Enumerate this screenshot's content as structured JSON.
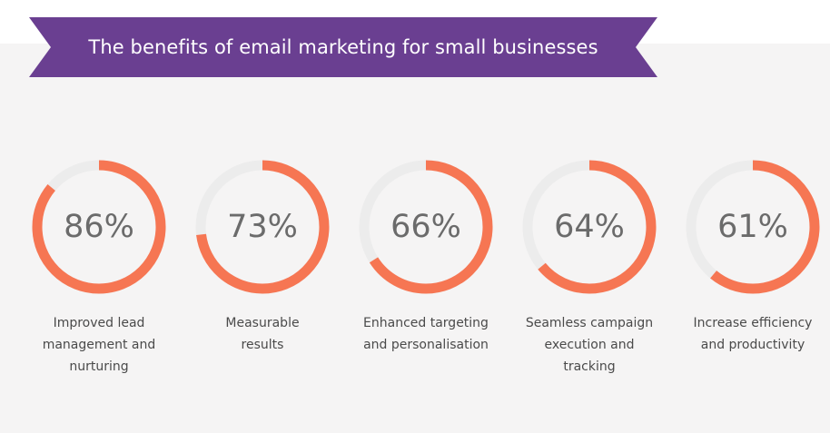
{
  "header": {
    "title": "The benefits of email marketing for small businesses",
    "banner_color": "#6a3f91"
  },
  "colors": {
    "ring_fill": "#f67653",
    "ring_track": "#ececec",
    "panel_bg": "#f5f4f4"
  },
  "chart_data": {
    "type": "donut",
    "title": "The benefits of email marketing for small businesses",
    "unit": "%",
    "categories": [
      "Improved lead management and nurturing",
      "Measurable results",
      "Enhanced targeting and personalisation",
      "Seamless campaign execution and tracking",
      "Increase efficiency and productivity"
    ],
    "values": [
      86,
      73,
      66,
      64,
      61
    ]
  },
  "stats": [
    {
      "value_label": "86%",
      "caption": "Improved lead\nmanagement and\nnurturing"
    },
    {
      "value_label": "73%",
      "caption": "Measurable\nresults"
    },
    {
      "value_label": "66%",
      "caption": "Enhanced targeting\nand personalisation"
    },
    {
      "value_label": "64%",
      "caption": "Seamless campaign\nexecution and\ntracking"
    },
    {
      "value_label": "61%",
      "caption": "Increase efficiency\nand productivity"
    }
  ]
}
